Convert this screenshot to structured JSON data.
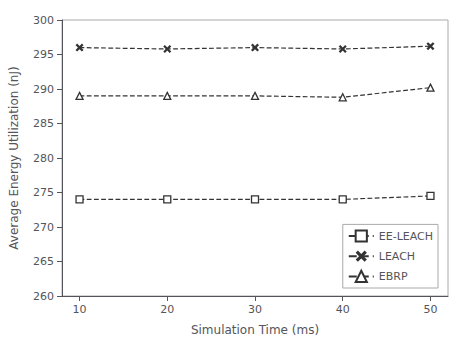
{
  "chart_data": {
    "type": "line",
    "x": [
      10,
      20,
      30,
      40,
      50
    ],
    "series": [
      {
        "name": "EE-LEACH",
        "color": "#333333",
        "marker": "square",
        "line_style": "dashed",
        "values": [
          274.0,
          274.0,
          274.0,
          274.0,
          274.5
        ]
      },
      {
        "name": "LEACH",
        "color": "#333333",
        "marker": "x",
        "line_style": "dashed",
        "values": [
          296.0,
          295.8,
          296.0,
          295.8,
          296.2
        ]
      },
      {
        "name": "EBRP",
        "color": "#333333",
        "marker": "triangle",
        "line_style": "dashed",
        "values": [
          289.0,
          289.0,
          289.0,
          288.8,
          290.2
        ]
      }
    ],
    "xlabel": "Simulation Time (ms)",
    "ylabel": "Average Energy Utilization (nJ)",
    "xlim": [
      8,
      52
    ],
    "xticks": [
      10,
      20,
      30,
      40,
      50
    ],
    "ylim": [
      260,
      300
    ],
    "yticks": [
      260,
      265,
      270,
      275,
      280,
      285,
      290,
      295,
      300
    ],
    "grid": false,
    "legend": "lower right"
  }
}
